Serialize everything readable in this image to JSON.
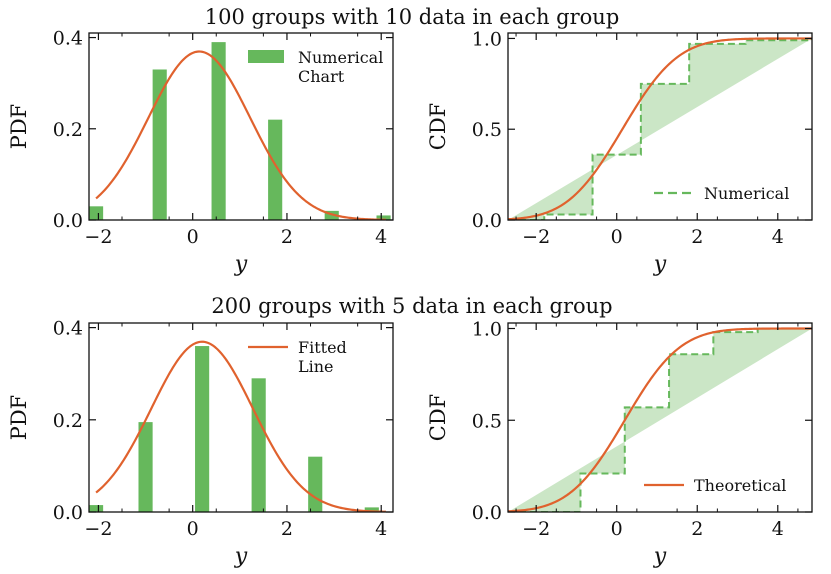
{
  "chart_data": [
    {
      "id": "top-pdf",
      "type": "bar",
      "title": "100 groups with 10 data in each group",
      "xlabel": "y",
      "ylabel": "PDF",
      "xlim": [
        -2.2,
        4.25
      ],
      "ylim": [
        0,
        0.41
      ],
      "xticks": [
        -2,
        0,
        2,
        4
      ],
      "yticks": [
        0.0,
        0.2,
        0.4
      ],
      "bar_color": "#66b85c",
      "bar_width": 0.3,
      "bars": [
        {
          "x": -2.05,
          "y": 0.03
        },
        {
          "x": -0.7,
          "y": 0.33
        },
        {
          "x": 0.55,
          "y": 0.39
        },
        {
          "x": 1.75,
          "y": 0.22
        },
        {
          "x": 2.95,
          "y": 0.02
        },
        {
          "x": 4.05,
          "y": 0.01
        }
      ],
      "fitted_line": {
        "color": "#e0622e",
        "mean": 0.14,
        "sd": 1.08
      },
      "legend": {
        "label": "Numerical\nChart",
        "position": "top-right",
        "swatch": "bar"
      },
      "grid": false
    },
    {
      "id": "top-cdf",
      "type": "line",
      "xlabel": "y",
      "ylabel": "CDF",
      "xlim": [
        -2.7,
        4.85
      ],
      "ylim": [
        0,
        1.03
      ],
      "xticks": [
        -2,
        0,
        2,
        4
      ],
      "yticks": [
        0.0,
        0.5,
        1.0
      ],
      "step_color": "#66b85c",
      "fill_color": "#cbe6c6",
      "step_x": [
        -2.7,
        -1.8,
        -0.6,
        0.6,
        1.8,
        3.2,
        4.85
      ],
      "step_y": [
        0.0,
        0.03,
        0.36,
        0.75,
        0.97,
        0.99,
        1.0
      ],
      "theoretical_line": {
        "color": "#e0622e",
        "mean": 0.14,
        "sd": 1.08
      },
      "legend": {
        "label": "Numerical",
        "position": "lower-right",
        "swatch": "dashed"
      },
      "grid": false
    },
    {
      "id": "bottom-pdf",
      "type": "bar",
      "title": "200 groups with 5 data in each group",
      "xlabel": "y",
      "ylabel": "PDF",
      "xlim": [
        -2.2,
        4.25
      ],
      "ylim": [
        0,
        0.41
      ],
      "xticks": [
        -2,
        0,
        2,
        4
      ],
      "yticks": [
        0.0,
        0.2,
        0.4
      ],
      "bar_color": "#66b85c",
      "bar_width": 0.3,
      "bars": [
        {
          "x": -2.05,
          "y": 0.015
        },
        {
          "x": -1.0,
          "y": 0.195
        },
        {
          "x": 0.2,
          "y": 0.36
        },
        {
          "x": 1.4,
          "y": 0.29
        },
        {
          "x": 2.6,
          "y": 0.12
        },
        {
          "x": 3.8,
          "y": 0.01
        }
      ],
      "fitted_line": {
        "color": "#e0622e",
        "mean": 0.2,
        "sd": 1.08
      },
      "legend": {
        "label": "Fitted\nLine",
        "position": "top-right",
        "swatch": "line"
      },
      "grid": false
    },
    {
      "id": "bottom-cdf",
      "type": "line",
      "xlabel": "y",
      "ylabel": "CDF",
      "xlim": [
        -2.7,
        4.85
      ],
      "ylim": [
        0,
        1.03
      ],
      "xticks": [
        -2,
        0,
        2,
        4
      ],
      "yticks": [
        0.0,
        0.5,
        1.0
      ],
      "step_color": "#66b85c",
      "fill_color": "#cbe6c6",
      "step_x": [
        -2.7,
        -0.9,
        0.2,
        1.3,
        2.4,
        3.5,
        4.85
      ],
      "step_y": [
        0.0,
        0.21,
        0.57,
        0.86,
        0.98,
        1.0,
        1.0
      ],
      "theoretical_line": {
        "color": "#e0622e",
        "mean": 0.2,
        "sd": 1.08
      },
      "legend": {
        "label": "Theoretical",
        "position": "lower-right",
        "swatch": "line"
      },
      "grid": false
    }
  ]
}
